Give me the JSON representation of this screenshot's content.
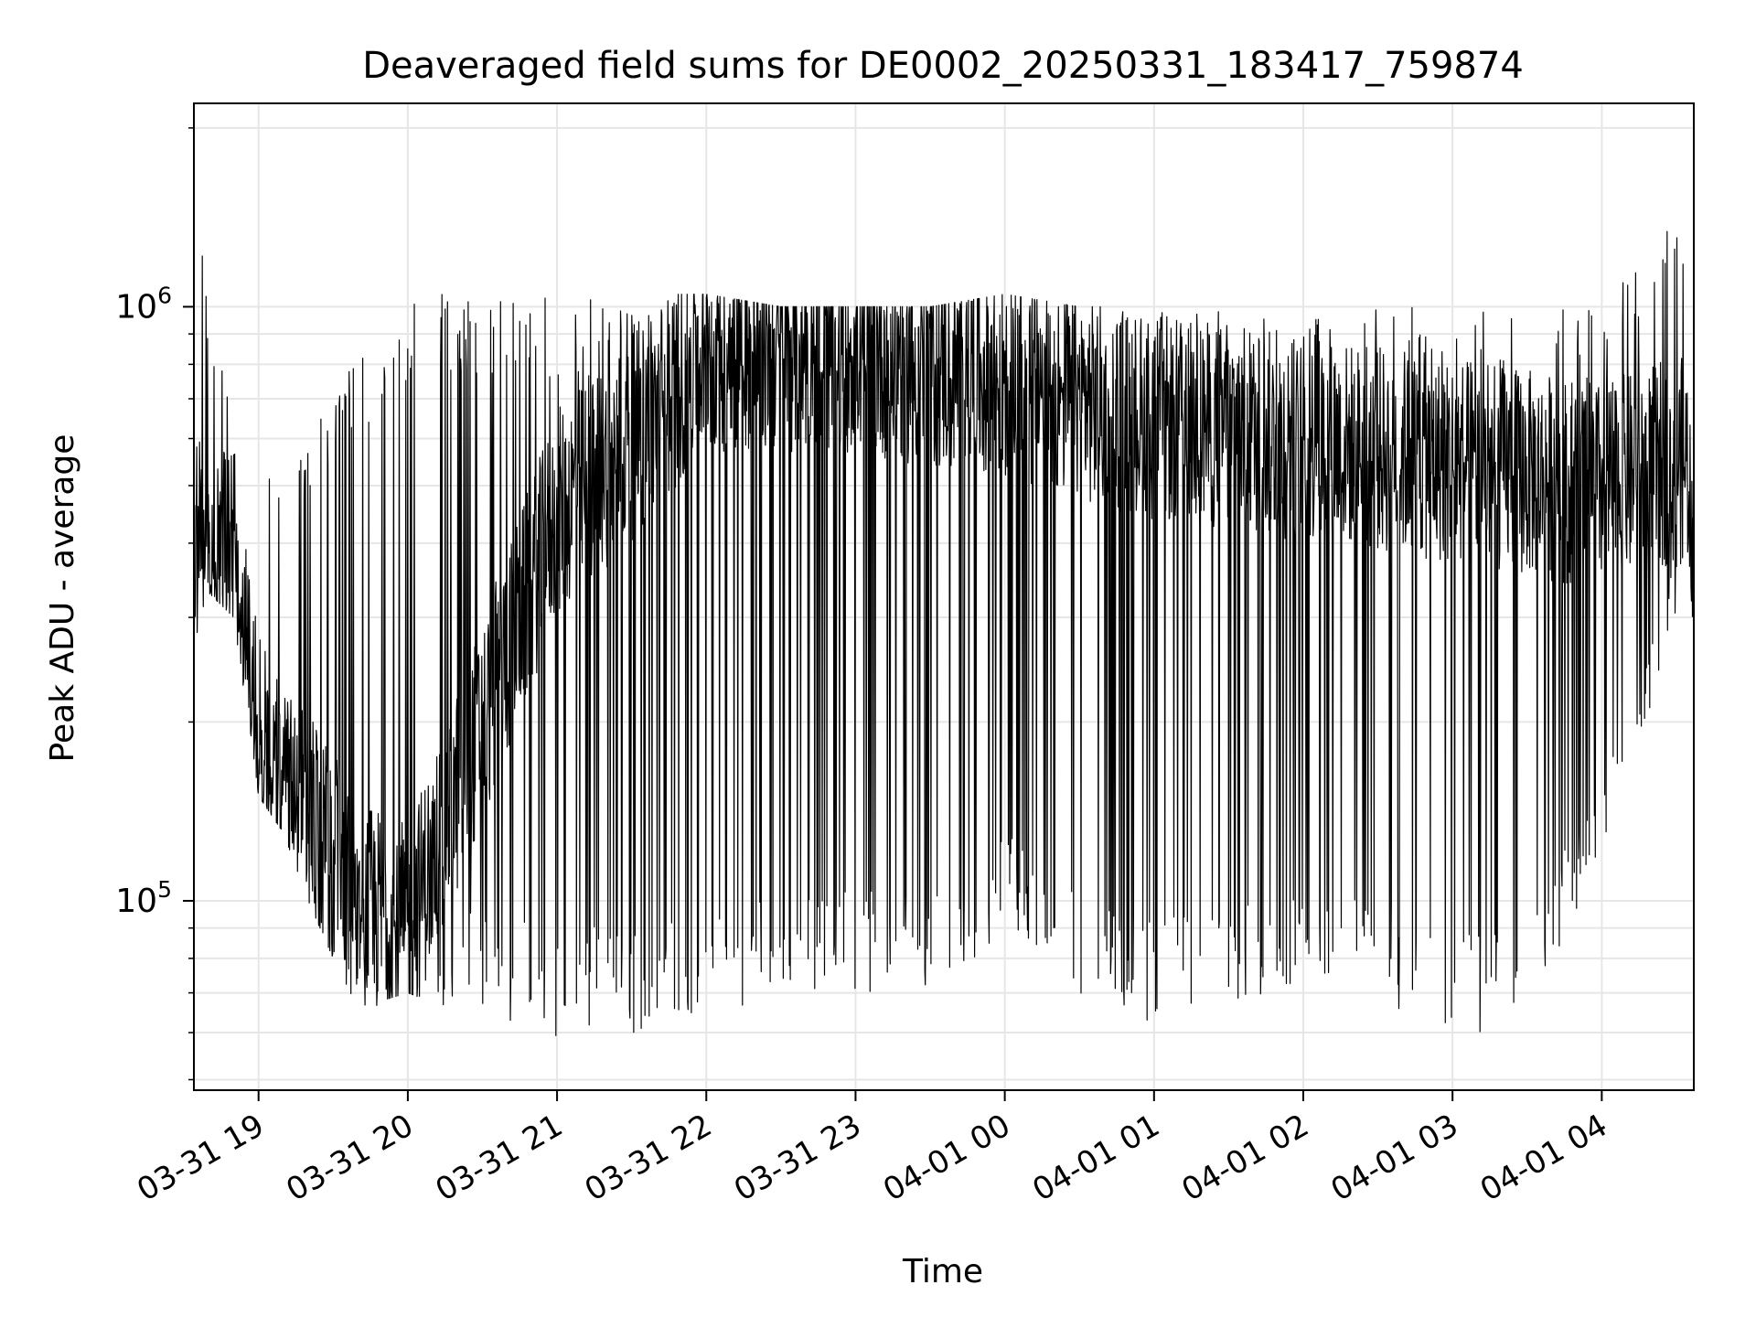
{
  "chart_data": {
    "type": "line",
    "title": "Deaveraged field sums for DE0002_20250331_183417_759874",
    "xlabel": "Time",
    "ylabel": "Peak ADU - average",
    "yscale": "log",
    "xlim": [
      "2025-03-31 18:34",
      "2025-04-01 04:37"
    ],
    "ylim": [
      48000,
      2200000
    ],
    "grid": true,
    "x_ticks": [
      {
        "t": "2025-03-31 19:00",
        "label": "03-31 19"
      },
      {
        "t": "2025-03-31 20:00",
        "label": "03-31 20"
      },
      {
        "t": "2025-03-31 21:00",
        "label": "03-31 21"
      },
      {
        "t": "2025-03-31 22:00",
        "label": "03-31 22"
      },
      {
        "t": "2025-03-31 23:00",
        "label": "03-31 23"
      },
      {
        "t": "2025-04-01 00:00",
        "label": "04-01 00"
      },
      {
        "t": "2025-04-01 01:00",
        "label": "04-01 01"
      },
      {
        "t": "2025-04-01 02:00",
        "label": "04-01 02"
      },
      {
        "t": "2025-04-01 03:00",
        "label": "04-01 03"
      },
      {
        "t": "2025-04-01 04:00",
        "label": "04-01 04"
      }
    ],
    "y_ticks": [
      {
        "value": 100000,
        "base": "10",
        "exp": "5"
      },
      {
        "value": 1000000,
        "base": "10",
        "exp": "6"
      }
    ],
    "line_color": "#000000",
    "series": [
      {
        "name": "",
        "envelope": [
          {
            "t": "2025-03-31 18:35",
            "low": 280000,
            "high": 1800000
          },
          {
            "t": "2025-03-31 18:40",
            "low": 330000,
            "high": 900000
          },
          {
            "t": "2025-03-31 18:50",
            "low": 300000,
            "high": 700000
          },
          {
            "t": "2025-03-31 19:00",
            "low": 150000,
            "high": 600000
          },
          {
            "t": "2025-03-31 19:10",
            "low": 130000,
            "high": 550000
          },
          {
            "t": "2025-03-31 19:20",
            "low": 100000,
            "high": 600000
          },
          {
            "t": "2025-03-31 19:30",
            "low": 80000,
            "high": 700000
          },
          {
            "t": "2025-03-31 19:40",
            "low": 62000,
            "high": 850000
          },
          {
            "t": "2025-03-31 19:50",
            "low": 68000,
            "high": 900000
          },
          {
            "t": "2025-03-31 20:00",
            "low": 70000,
            "high": 1050000
          },
          {
            "t": "2025-03-31 20:20",
            "low": 65000,
            "high": 1080000
          },
          {
            "t": "2025-03-31 20:40",
            "low": 62000,
            "high": 1060000
          },
          {
            "t": "2025-03-31 21:00",
            "low": 58000,
            "high": 1050000
          },
          {
            "t": "2025-03-31 21:20",
            "low": 60000,
            "high": 1050000
          },
          {
            "t": "2025-03-31 21:40",
            "low": 60000,
            "high": 1050000
          },
          {
            "t": "2025-03-31 22:00",
            "low": 62000,
            "high": 1050000
          },
          {
            "t": "2025-03-31 22:30",
            "low": 72000,
            "high": 1000000
          },
          {
            "t": "2025-03-31 23:00",
            "low": 70000,
            "high": 1000000
          },
          {
            "t": "2025-03-31 23:30",
            "low": 68000,
            "high": 1000000
          },
          {
            "t": "2025-04-01 00:00",
            "low": 90000,
            "high": 1050000
          },
          {
            "t": "2025-04-01 00:30",
            "low": 70000,
            "high": 1000000
          },
          {
            "t": "2025-04-01 01:00",
            "low": 62000,
            "high": 1000000
          },
          {
            "t": "2025-04-01 01:30",
            "low": 65000,
            "high": 1000000
          },
          {
            "t": "2025-04-01 02:00",
            "low": 70000,
            "high": 1000000
          },
          {
            "t": "2025-04-01 02:30",
            "low": 70000,
            "high": 1000000
          },
          {
            "t": "2025-04-01 03:00",
            "low": 55000,
            "high": 1050000
          },
          {
            "t": "2025-04-01 03:30",
            "low": 68000,
            "high": 1000000
          },
          {
            "t": "2025-04-01 04:00",
            "low": 110000,
            "high": 1000000
          },
          {
            "t": "2025-04-01 04:30",
            "low": 300000,
            "high": 1400000
          }
        ],
        "median": [
          {
            "t": "2025-03-31 18:35",
            "y": 400000
          },
          {
            "t": "2025-03-31 18:50",
            "y": 400000
          },
          {
            "t": "2025-03-31 19:00",
            "y": 190000
          },
          {
            "t": "2025-03-31 19:20",
            "y": 140000
          },
          {
            "t": "2025-03-31 19:40",
            "y": 100000
          },
          {
            "t": "2025-03-31 20:00",
            "y": 90000
          },
          {
            "t": "2025-03-31 20:30",
            "y": 200000
          },
          {
            "t": "2025-03-31 21:00",
            "y": 450000
          },
          {
            "t": "2025-03-31 21:30",
            "y": 600000
          },
          {
            "t": "2025-03-31 22:00",
            "y": 850000
          },
          {
            "t": "2025-03-31 23:00",
            "y": 850000
          },
          {
            "t": "2025-04-01 00:00",
            "y": 750000
          },
          {
            "t": "2025-04-01 01:00",
            "y": 650000
          },
          {
            "t": "2025-04-01 02:00",
            "y": 600000
          },
          {
            "t": "2025-04-01 03:00",
            "y": 550000
          },
          {
            "t": "2025-04-01 04:00",
            "y": 500000
          },
          {
            "t": "2025-04-01 04:30",
            "y": 550000
          }
        ]
      }
    ]
  }
}
